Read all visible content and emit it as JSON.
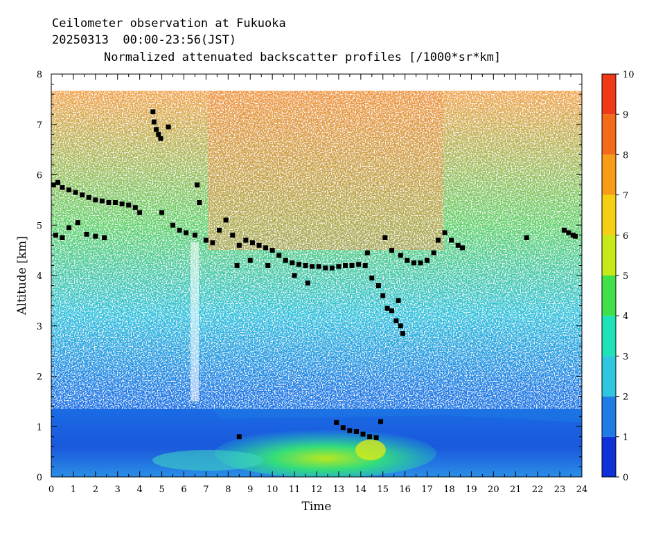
{
  "chart_data": {
    "type": "heatmap",
    "title": "Ceilometer observation at Fukuoka",
    "subtitle": "20250313  00:00-23:56(JST)",
    "colorbar_title": "Normalized attenuated backscatter profiles [/1000*sr*km]",
    "xlabel": "Time",
    "ylabel": "Altitude [km]",
    "xlim": [
      0,
      24
    ],
    "ylim": [
      0,
      8
    ],
    "x_ticks": [
      "0",
      "1",
      "2",
      "3",
      "4",
      "5",
      "6",
      "7",
      "8",
      "9",
      "10",
      "11",
      "12",
      "13",
      "14",
      "15",
      "16",
      "17",
      "18",
      "19",
      "20",
      "21",
      "22",
      "23",
      "24"
    ],
    "y_ticks": [
      "0",
      "1",
      "2",
      "3",
      "4",
      "5",
      "6",
      "7",
      "8"
    ],
    "colorbar_ticks": [
      "0",
      "1",
      "2",
      "3",
      "4",
      "5",
      "6",
      "7",
      "8",
      "9",
      "10"
    ],
    "colorbar_range": [
      0,
      10
    ],
    "colorbar_colors": [
      "#1030d8",
      "#1f7be6",
      "#2fc7e0",
      "#1fe3b8",
      "#3fe04a",
      "#c8e818",
      "#f6cf12",
      "#f79b18",
      "#f36a18",
      "#ee3a16"
    ],
    "cloud_base_marker_color": "#000000",
    "cloud_base_km": [
      {
        "t": 0.1,
        "h": 5.8
      },
      {
        "t": 0.3,
        "h": 5.85
      },
      {
        "t": 0.5,
        "h": 5.75
      },
      {
        "t": 0.8,
        "h": 5.7
      },
      {
        "t": 1.1,
        "h": 5.65
      },
      {
        "t": 1.4,
        "h": 5.6
      },
      {
        "t": 1.7,
        "h": 5.55
      },
      {
        "t": 2.0,
        "h": 5.5
      },
      {
        "t": 2.3,
        "h": 5.48
      },
      {
        "t": 2.6,
        "h": 5.45
      },
      {
        "t": 2.9,
        "h": 5.45
      },
      {
        "t": 3.2,
        "h": 5.42
      },
      {
        "t": 3.5,
        "h": 5.4
      },
      {
        "t": 3.8,
        "h": 5.35
      },
      {
        "t": 4.0,
        "h": 5.25
      },
      {
        "t": 0.2,
        "h": 4.8
      },
      {
        "t": 0.5,
        "h": 4.75
      },
      {
        "t": 0.8,
        "h": 4.95
      },
      {
        "t": 1.2,
        "h": 5.05
      },
      {
        "t": 1.6,
        "h": 4.82
      },
      {
        "t": 2.0,
        "h": 4.78
      },
      {
        "t": 2.4,
        "h": 4.75
      },
      {
        "t": 4.6,
        "h": 7.25
      },
      {
        "t": 4.65,
        "h": 7.05
      },
      {
        "t": 4.75,
        "h": 6.9
      },
      {
        "t": 4.85,
        "h": 6.8
      },
      {
        "t": 4.95,
        "h": 6.72
      },
      {
        "t": 5.3,
        "h": 6.95
      },
      {
        "t": 5.0,
        "h": 5.25
      },
      {
        "t": 5.5,
        "h": 5.0
      },
      {
        "t": 5.8,
        "h": 4.9
      },
      {
        "t": 6.1,
        "h": 4.85
      },
      {
        "t": 6.5,
        "h": 4.8
      },
      {
        "t": 6.6,
        "h": 5.8
      },
      {
        "t": 6.7,
        "h": 5.45
      },
      {
        "t": 7.0,
        "h": 4.7
      },
      {
        "t": 7.3,
        "h": 4.65
      },
      {
        "t": 7.6,
        "h": 4.9
      },
      {
        "t": 7.9,
        "h": 5.1
      },
      {
        "t": 8.2,
        "h": 4.8
      },
      {
        "t": 8.5,
        "h": 4.6
      },
      {
        "t": 8.8,
        "h": 4.7
      },
      {
        "t": 9.1,
        "h": 4.65
      },
      {
        "t": 9.4,
        "h": 4.6
      },
      {
        "t": 9.7,
        "h": 4.55
      },
      {
        "t": 10.0,
        "h": 4.5
      },
      {
        "t": 10.3,
        "h": 4.4
      },
      {
        "t": 10.6,
        "h": 4.3
      },
      {
        "t": 10.9,
        "h": 4.25
      },
      {
        "t": 11.2,
        "h": 4.22
      },
      {
        "t": 11.5,
        "h": 4.2
      },
      {
        "t": 11.8,
        "h": 4.18
      },
      {
        "t": 12.1,
        "h": 4.18
      },
      {
        "t": 12.4,
        "h": 4.15
      },
      {
        "t": 12.7,
        "h": 4.15
      },
      {
        "t": 13.0,
        "h": 4.18
      },
      {
        "t": 13.3,
        "h": 4.2
      },
      {
        "t": 13.6,
        "h": 4.2
      },
      {
        "t": 13.9,
        "h": 4.22
      },
      {
        "t": 14.2,
        "h": 4.2
      },
      {
        "t": 8.4,
        "h": 4.2
      },
      {
        "t": 9.0,
        "h": 4.3
      },
      {
        "t": 9.8,
        "h": 4.2
      },
      {
        "t": 11.0,
        "h": 4.0
      },
      {
        "t": 11.6,
        "h": 3.85
      },
      {
        "t": 14.3,
        "h": 4.45
      },
      {
        "t": 14.5,
        "h": 3.95
      },
      {
        "t": 14.8,
        "h": 3.8
      },
      {
        "t": 15.0,
        "h": 3.6
      },
      {
        "t": 15.2,
        "h": 3.35
      },
      {
        "t": 15.4,
        "h": 3.3
      },
      {
        "t": 15.6,
        "h": 3.1
      },
      {
        "t": 15.8,
        "h": 3.0
      },
      {
        "t": 15.7,
        "h": 3.5
      },
      {
        "t": 15.9,
        "h": 2.85
      },
      {
        "t": 15.1,
        "h": 4.75
      },
      {
        "t": 15.4,
        "h": 4.5
      },
      {
        "t": 15.8,
        "h": 4.4
      },
      {
        "t": 16.1,
        "h": 4.3
      },
      {
        "t": 16.4,
        "h": 4.25
      },
      {
        "t": 16.7,
        "h": 4.25
      },
      {
        "t": 17.0,
        "h": 4.3
      },
      {
        "t": 17.3,
        "h": 4.45
      },
      {
        "t": 17.5,
        "h": 4.7
      },
      {
        "t": 17.8,
        "h": 4.85
      },
      {
        "t": 18.1,
        "h": 4.7
      },
      {
        "t": 18.4,
        "h": 4.6
      },
      {
        "t": 18.6,
        "h": 4.55
      },
      {
        "t": 8.5,
        "h": 0.8
      },
      {
        "t": 12.9,
        "h": 1.08
      },
      {
        "t": 13.2,
        "h": 0.98
      },
      {
        "t": 13.5,
        "h": 0.92
      },
      {
        "t": 13.8,
        "h": 0.9
      },
      {
        "t": 14.1,
        "h": 0.85
      },
      {
        "t": 14.4,
        "h": 0.8
      },
      {
        "t": 14.7,
        "h": 0.78
      },
      {
        "t": 14.9,
        "h": 1.1
      },
      {
        "t": 21.5,
        "h": 4.75
      },
      {
        "t": 23.2,
        "h": 4.9
      },
      {
        "t": 23.4,
        "h": 4.85
      },
      {
        "t": 23.6,
        "h": 4.8
      },
      {
        "t": 23.7,
        "h": 4.78
      }
    ]
  }
}
